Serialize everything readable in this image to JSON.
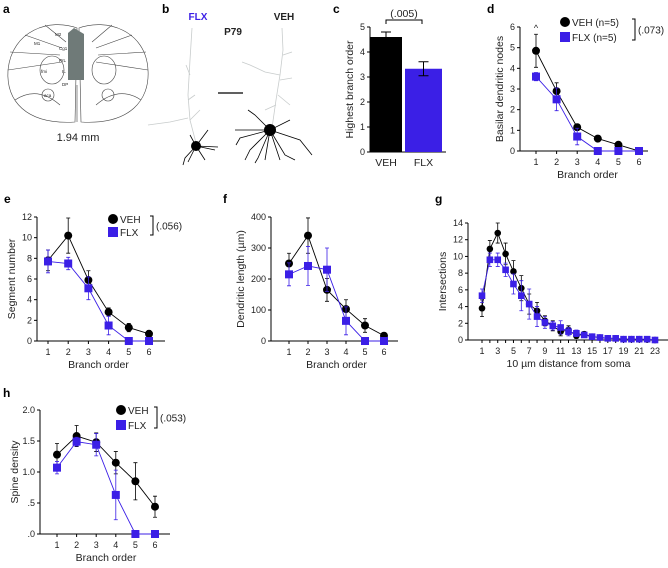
{
  "colors": {
    "veh": "#000000",
    "flx": "#3b1fe6",
    "shade": "#6f7a78"
  },
  "panel_a": {
    "letter": "a",
    "caption": "1.94 mm",
    "regions": [
      "M1",
      "M2",
      "Cg1",
      "PrL",
      "IL",
      "DP",
      "fmi",
      "aca"
    ]
  },
  "panel_b": {
    "letter": "b",
    "flx_label": "FLX",
    "age_label": "P79",
    "veh_label": "VEH"
  },
  "chart_data": [
    {
      "id": "c",
      "letter": "c",
      "type": "bar",
      "categories": [
        "VEH",
        "FLX"
      ],
      "values": [
        4.6,
        3.33
      ],
      "errors": [
        0.2,
        0.28
      ],
      "ylabel": "Highest branch order",
      "ylim": [
        0,
        5
      ],
      "yticks": [
        "0",
        "1",
        "2",
        "3",
        "4",
        "5"
      ],
      "pvalue": "(.005)"
    },
    {
      "id": "d",
      "letter": "d",
      "type": "line",
      "categories": [
        "1",
        "2",
        "3",
        "4",
        "5",
        "6"
      ],
      "ylabel": "Basilar dendritic nodes",
      "xlabel": "Branch order",
      "ylim": [
        0,
        6
      ],
      "yticks": [
        "0",
        "1",
        "2",
        "3",
        "4",
        "5",
        "6"
      ],
      "series": [
        {
          "name": "VEH (n=5)",
          "values": [
            4.85,
            2.9,
            1.15,
            0.6,
            0.3,
            0
          ],
          "errors": [
            0.8,
            0.4,
            0.15,
            0.15,
            0.05,
            0
          ]
        },
        {
          "name": "FLX (n=5)",
          "values": [
            3.6,
            2.5,
            0.7,
            0,
            0,
            0
          ],
          "errors": [
            0.2,
            0.55,
            0.4,
            0,
            0,
            0
          ]
        }
      ],
      "pvalue": "(.073)",
      "annotation": "^"
    },
    {
      "id": "e",
      "letter": "e",
      "type": "line",
      "categories": [
        "1",
        "2",
        "3",
        "4",
        "5",
        "6"
      ],
      "ylabel": "Segment number",
      "xlabel": "Branch order",
      "ylim": [
        0,
        12
      ],
      "yticks": [
        "0",
        "2",
        "4",
        "6",
        "8",
        "10",
        "12"
      ],
      "series": [
        {
          "name": "VEH",
          "values": [
            7.8,
            10.2,
            5.9,
            2.8,
            1.3,
            0.7
          ],
          "errors": [
            1.0,
            1.7,
            0.9,
            0.4,
            0.4,
            0.3
          ]
        },
        {
          "name": "FLX",
          "values": [
            7.7,
            7.5,
            5.1,
            1.5,
            0,
            0
          ],
          "errors": [
            1.1,
            0.6,
            1.1,
            0.9,
            0,
            0
          ]
        }
      ],
      "pvalue": "(.056)"
    },
    {
      "id": "f",
      "letter": "f",
      "type": "line",
      "categories": [
        "1",
        "2",
        "3",
        "4",
        "5",
        "6"
      ],
      "ylabel": "Dendritic length (µm)",
      "xlabel": "Branch order",
      "ylim": [
        0,
        400
      ],
      "yticks": [
        "0",
        "100",
        "200",
        "300",
        "400"
      ],
      "series": [
        {
          "name": "VEH",
          "values": [
            250,
            340,
            165,
            103,
            50,
            17
          ],
          "errors": [
            33,
            57,
            37,
            30,
            22,
            5
          ]
        },
        {
          "name": "FLX",
          "values": [
            215,
            242,
            230,
            65,
            0,
            0
          ],
          "errors": [
            37,
            63,
            70,
            45,
            0,
            0
          ]
        }
      ]
    },
    {
      "id": "g",
      "letter": "g",
      "type": "line",
      "categories": [
        "1",
        "2",
        "3",
        "4",
        "5",
        "6",
        "7",
        "8",
        "9",
        "10",
        "11",
        "12",
        "13",
        "14",
        "15",
        "16",
        "17",
        "18",
        "19",
        "20",
        "21",
        "22",
        "23"
      ],
      "xticklabels": [
        "1",
        "",
        "3",
        "",
        "5",
        "",
        "7",
        "",
        "9",
        "",
        "11",
        "",
        "13",
        "",
        "15",
        "",
        "17",
        "",
        "19",
        "",
        "21",
        "",
        "23"
      ],
      "ylabel": "Intersections",
      "xlabel": "10 µm distance from soma",
      "ylim": [
        0,
        14
      ],
      "yticks": [
        "0",
        "2",
        "4",
        "6",
        "8",
        "10",
        "12",
        "14"
      ],
      "series": [
        {
          "name": "VEH",
          "values": [
            3.8,
            10.9,
            12.8,
            10.3,
            8.2,
            6.2,
            4.3,
            3.5,
            2.3,
            1.7,
            1.0,
            1.2,
            0.5,
            0.7,
            0.4,
            0.3,
            0.2,
            0.2,
            0.1,
            0.1,
            0.1,
            0.05,
            0
          ],
          "errors": [
            1.0,
            1.0,
            1.2,
            1.3,
            1.3,
            1.5,
            1.2,
            1.0,
            0.6,
            0.6,
            0.5,
            0.5,
            0.3,
            0.3,
            0.2,
            0.1,
            0.1,
            0.1,
            0,
            0,
            0,
            0,
            0
          ]
        },
        {
          "name": "FLX",
          "values": [
            5.3,
            9.6,
            9.6,
            8.4,
            6.7,
            5.3,
            4.3,
            2.8,
            2.1,
            1.7,
            1.5,
            1.0,
            0.8,
            0.6,
            0.4,
            0.3,
            0.2,
            0.2,
            0.1,
            0.1,
            0.1,
            0.1,
            0
          ],
          "errors": [
            0.8,
            0.8,
            0.8,
            0.8,
            1.2,
            1.8,
            1.8,
            1.2,
            0.7,
            0.5,
            0.8,
            0.5,
            0.4,
            0.3,
            0.2,
            0.1,
            0.1,
            0.1,
            0,
            0,
            0,
            0,
            0
          ]
        }
      ]
    },
    {
      "id": "h",
      "letter": "h",
      "type": "line",
      "categories": [
        "1",
        "2",
        "3",
        "4",
        "5",
        "6"
      ],
      "ylabel": "Spine density",
      "xlabel": "Branch order",
      "ylim": [
        0,
        2
      ],
      "yticks": [
        ".0",
        ".5",
        "1.0",
        "1.5",
        "2.0"
      ],
      "series": [
        {
          "name": "VEH",
          "values": [
            1.28,
            1.58,
            1.48,
            1.15,
            0.85,
            0.44
          ],
          "errors": [
            0.18,
            0.17,
            0.15,
            0.18,
            0.3,
            0.17
          ]
        },
        {
          "name": "FLX",
          "values": [
            1.07,
            1.49,
            1.44,
            0.63,
            0,
            0
          ],
          "errors": [
            0.1,
            0.07,
            0.18,
            0.4,
            0,
            0
          ]
        }
      ],
      "pvalue": "(.053)"
    }
  ]
}
